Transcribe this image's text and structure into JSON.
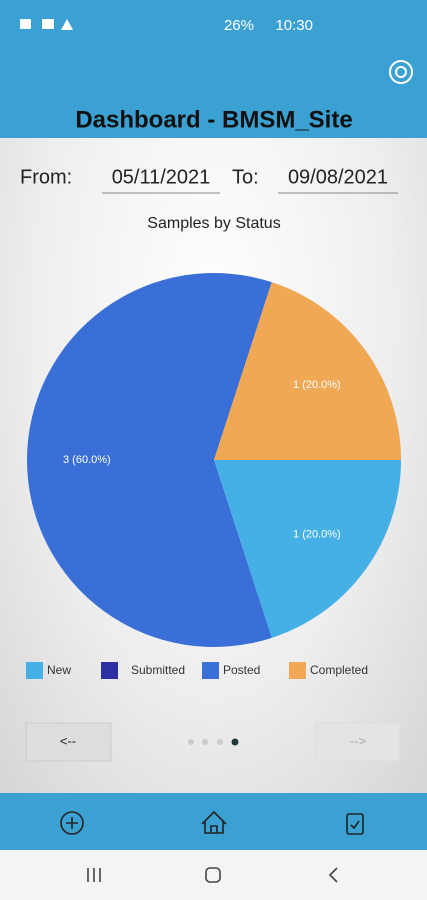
{
  "status_bar": {
    "battery": "26%",
    "time": "10:30"
  },
  "header": {
    "title": "Dashboard - BMSM_Site"
  },
  "date_range": {
    "from_label": "From:",
    "from": "05/11/2021",
    "to_label": "To:",
    "to": "09/08/2021"
  },
  "chart_data": {
    "type": "pie",
    "title": "Samples by Status",
    "categories": [
      "New",
      "Submitted",
      "Posted",
      "Completed"
    ],
    "values": [
      1,
      0,
      3,
      1
    ],
    "value_labels": [
      "1 (20.0%)",
      null,
      "3 (60.0%)",
      "1 (20.0%)"
    ],
    "colors": [
      "#45b0e6",
      "#2b2fa3",
      "#3a6fd8",
      "#f0a855"
    ]
  },
  "pager": {
    "prev": "<--",
    "next": "-->"
  }
}
